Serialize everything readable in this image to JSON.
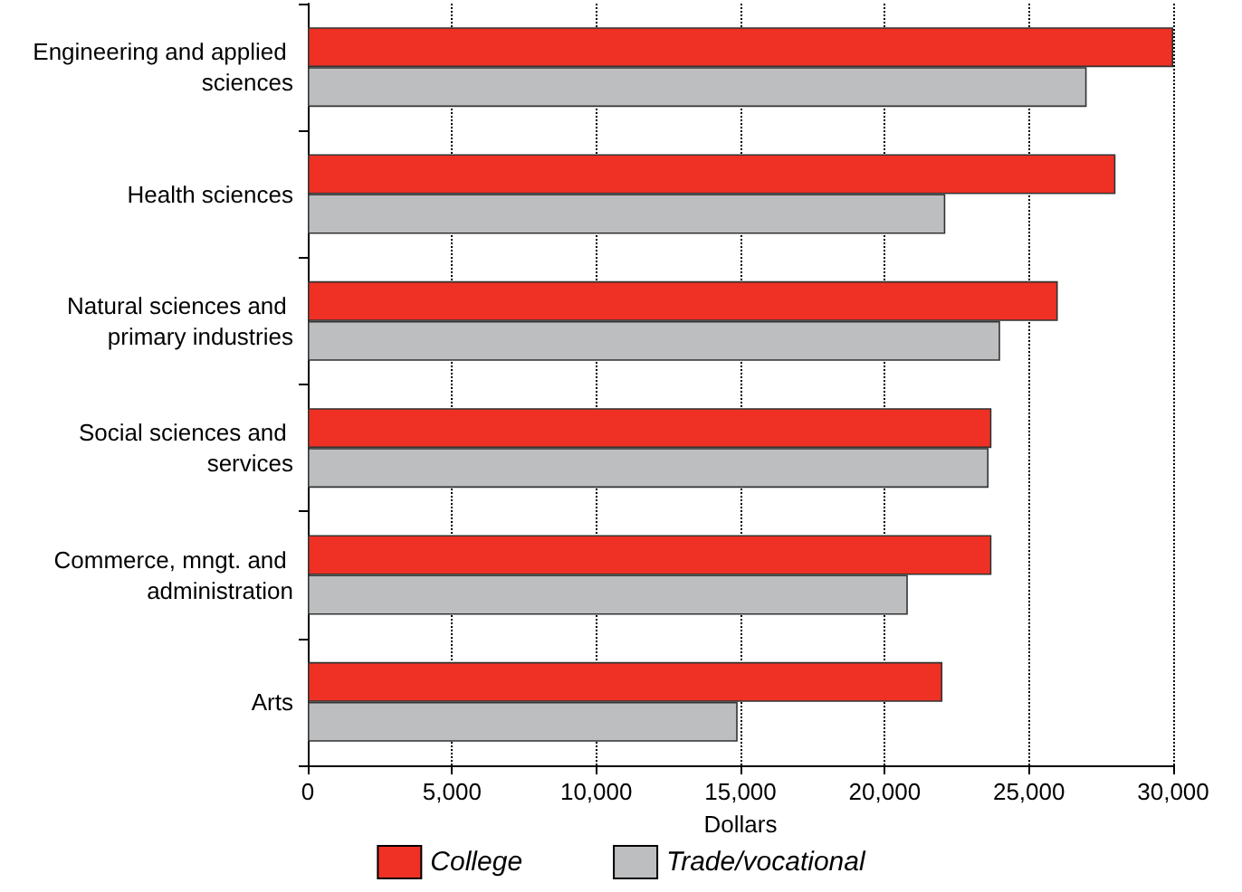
{
  "chart_data": {
    "type": "bar",
    "orientation": "horizontal",
    "xlabel": "Dollars",
    "categories": [
      "Engineering and applied sciences",
      "Health sciences",
      "Natural sciences and primary industries",
      "Social sciences and services",
      "Commerce, mngt. and administration",
      "Arts"
    ],
    "series": [
      {
        "name": "College",
        "color": "#ee3124",
        "values": [
          30000,
          28000,
          26000,
          23700,
          23700,
          22000
        ]
      },
      {
        "name": "Trade/vocational",
        "color": "#bcbec0",
        "values": [
          27000,
          22100,
          24000,
          23600,
          20800,
          14900
        ]
      }
    ],
    "xlim": [
      0,
      30000
    ],
    "xticks": [
      {
        "value": 0,
        "label": "0"
      },
      {
        "value": 5000,
        "label": "5,000"
      },
      {
        "value": 10000,
        "label": "10,000"
      },
      {
        "value": 15000,
        "label": "15,000"
      },
      {
        "value": 20000,
        "label": "20,000"
      },
      {
        "value": 25000,
        "label": "25,000"
      },
      {
        "value": 30000,
        "label": "30,000"
      }
    ],
    "grid": "x",
    "legend": "bottom"
  }
}
